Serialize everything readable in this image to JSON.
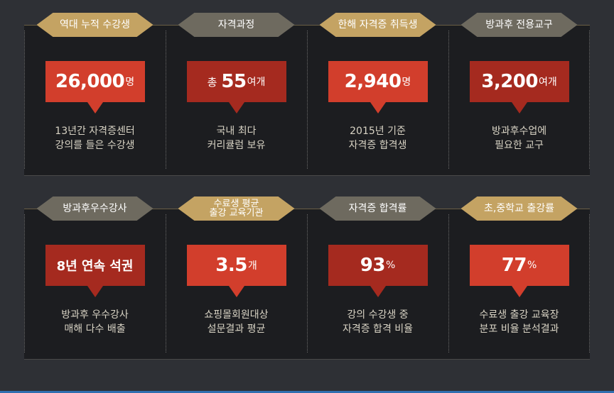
{
  "top": [
    {
      "badge": "역대 누적 수강생",
      "badge_style": "gold",
      "box_style": "bright",
      "prefix": "",
      "value": "26,000",
      "unit": "명",
      "desc1": "13년간 자격증센터",
      "desc2": "강의를 들은 수강생"
    },
    {
      "badge": "자격과정",
      "badge_style": "gray",
      "box_style": "dark",
      "prefix": "총",
      "value": "55",
      "unit": "여개",
      "desc1": "국내 최다",
      "desc2": "커리큘럼 보유"
    },
    {
      "badge": "한해 자격증 취득생",
      "badge_style": "gold",
      "box_style": "bright",
      "prefix": "",
      "value": "2,940",
      "unit": "명",
      "desc1": "2015년 기준",
      "desc2": "자격증 합격생"
    },
    {
      "badge": "방과후 전용교구",
      "badge_style": "gray",
      "box_style": "dark",
      "prefix": "",
      "value": "3,200",
      "unit": "여개",
      "desc1": "방과후수업에",
      "desc2": "필요한 교구"
    }
  ],
  "bottom": [
    {
      "badge": "방과후우수강사",
      "badge_style": "gray",
      "box_style": "dark",
      "text": "8년 연속 석권",
      "desc1": "방과후 우수강사",
      "desc2": "매해 다수 배출"
    },
    {
      "badge1": "수료생 평균",
      "badge2": "출강 교육기관",
      "badge_style": "gold",
      "box_style": "bright",
      "value": "3.5",
      "unit": "개",
      "desc1": "쇼핑몰회원대상",
      "desc2": "설문결과 평균"
    },
    {
      "badge": "자격증 합격률",
      "badge_style": "gray",
      "box_style": "dark",
      "value": "93",
      "unit": "%",
      "desc1": "강의 수강생 중",
      "desc2": "자격증 합격 비율"
    },
    {
      "badge": "초,중학교 출강률",
      "badge_style": "gold",
      "box_style": "bright",
      "value": "77",
      "unit": "%",
      "desc1": "수료생 출강 교육장",
      "desc2": "분포 비율 분석결과"
    }
  ]
}
